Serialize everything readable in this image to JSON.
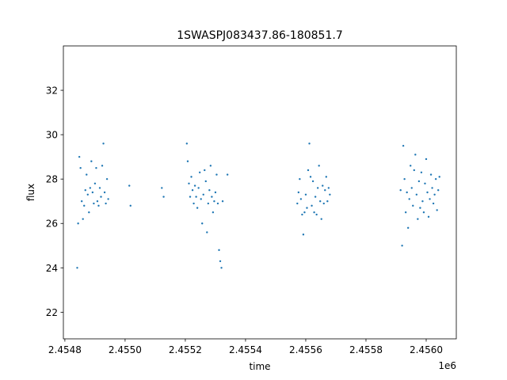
{
  "chart_data": {
    "type": "scatter",
    "title": "1SWASPJ083437.86-180851.7",
    "xlabel": "time",
    "ylabel": "flux",
    "offset_label": "1e6",
    "xlim": [
      2454795,
      2456100
    ],
    "ylim": [
      20.8,
      34.0
    ],
    "x_ticks": [
      2454800,
      2455000,
      2455200,
      2455400,
      2455600,
      2455800,
      2456000
    ],
    "x_tick_labels": [
      "2.4548",
      "2.4550",
      "2.4552",
      "2.4554",
      "2.4556",
      "2.4558",
      "2.4560"
    ],
    "y_ticks": [
      22,
      24,
      26,
      28,
      30,
      32
    ],
    "y_tick_labels": [
      "22",
      "24",
      "26",
      "28",
      "30",
      "32"
    ],
    "grid": false,
    "legend": "none",
    "marker_color": "#1f77b4",
    "series": [
      {
        "x": [
          2454841,
          2454844,
          2454848,
          2454852,
          2454856,
          2454860,
          2454864,
          2454868,
          2454872,
          2454876,
          2454880,
          2454884,
          2454888,
          2454892,
          2454896,
          2454900,
          2454904,
          2454908,
          2454912,
          2454916,
          2454920,
          2454924,
          2454928,
          2454932,
          2454936,
          2454940,
          2454944,
          2455014,
          2455018,
          2455122,
          2455128
        ],
        "y": [
          24.0,
          26.0,
          29.0,
          28.5,
          27.0,
          26.2,
          26.8,
          27.5,
          28.2,
          27.3,
          26.5,
          27.6,
          28.8,
          27.4,
          26.9,
          27.8,
          28.5,
          27.0,
          26.8,
          27.6,
          27.2,
          28.6,
          29.6,
          27.4,
          26.9,
          28.0,
          27.1,
          27.7,
          26.8,
          27.6,
          27.2
        ]
      },
      {
        "x": [
          2455205,
          2455208,
          2455212,
          2455216,
          2455220,
          2455224,
          2455228,
          2455232,
          2455236,
          2455240,
          2455244,
          2455248,
          2455252,
          2455256,
          2455260,
          2455264,
          2455268,
          2455272,
          2455276,
          2455280,
          2455284,
          2455288,
          2455292,
          2455296,
          2455300,
          2455304,
          2455308,
          2455312,
          2455316,
          2455320,
          2455324,
          2455340
        ],
        "y": [
          29.6,
          28.8,
          27.8,
          27.2,
          28.1,
          27.5,
          26.9,
          27.7,
          27.2,
          26.7,
          27.6,
          28.3,
          27.1,
          26.0,
          27.3,
          28.4,
          27.9,
          25.6,
          26.9,
          27.5,
          28.6,
          27.2,
          26.5,
          27.0,
          27.4,
          28.2,
          26.9,
          24.8,
          24.3,
          24.0,
          27.0,
          28.2
        ]
      },
      {
        "x": [
          2455572,
          2455576,
          2455580,
          2455584,
          2455588,
          2455592,
          2455596,
          2455600,
          2455604,
          2455608,
          2455612,
          2455616,
          2455620,
          2455624,
          2455628,
          2455632,
          2455636,
          2455640,
          2455644,
          2455648,
          2455652,
          2455656,
          2455660,
          2455664,
          2455668,
          2455672,
          2455676,
          2455680
        ],
        "y": [
          26.9,
          27.4,
          28.0,
          27.1,
          26.4,
          25.5,
          26.5,
          27.3,
          26.7,
          28.4,
          29.6,
          28.1,
          26.8,
          27.9,
          26.5,
          27.2,
          26.4,
          27.6,
          28.6,
          27.0,
          26.2,
          27.7,
          26.9,
          27.5,
          28.1,
          27.0,
          27.6,
          27.3
        ]
      },
      {
        "x": [
          2455915,
          2455920,
          2455924,
          2455928,
          2455932,
          2455936,
          2455940,
          2455944,
          2455948,
          2455952,
          2455956,
          2455960,
          2455964,
          2455968,
          2455972,
          2455976,
          2455980,
          2455984,
          2455988,
          2455992,
          2455996,
          2456000,
          2456004,
          2456008,
          2456012,
          2456016,
          2456020,
          2456024,
          2456028,
          2456032,
          2456036,
          2456040,
          2456044
        ],
        "y": [
          27.5,
          25.0,
          29.5,
          28.0,
          26.5,
          27.4,
          25.8,
          27.1,
          28.6,
          27.6,
          26.8,
          28.4,
          29.1,
          27.3,
          26.2,
          27.9,
          26.7,
          28.3,
          27.0,
          26.5,
          27.8,
          28.9,
          27.4,
          26.3,
          27.1,
          28.2,
          27.6,
          26.9,
          27.3,
          28.0,
          26.6,
          27.5,
          28.1
        ]
      }
    ]
  }
}
